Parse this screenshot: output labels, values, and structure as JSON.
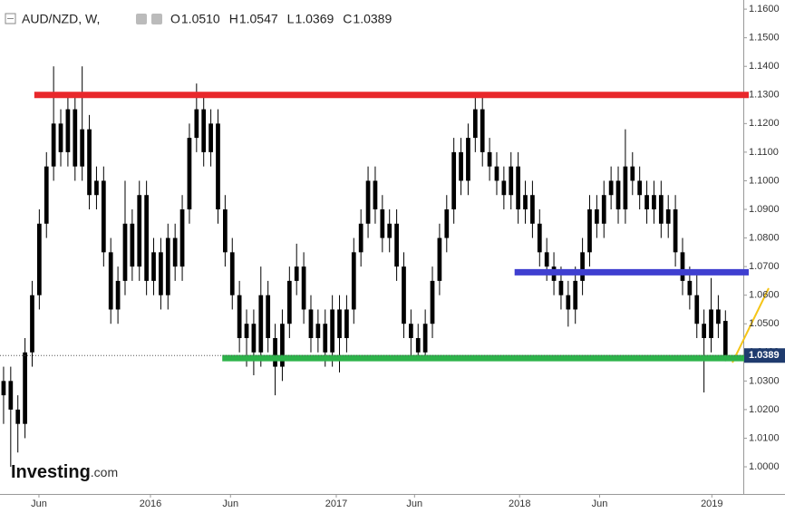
{
  "chart_data": {
    "type": "candlestick",
    "symbol": "AUD/NZD, W,",
    "ohlc_header": [
      {
        "label": "O",
        "value": "1.0510"
      },
      {
        "label": "H",
        "value": "1.0547"
      },
      {
        "label": "L",
        "value": "1.0369"
      },
      {
        "label": "C",
        "value": "1.0389"
      }
    ],
    "last_label": "1.0389",
    "logo": [
      "Investing",
      ".com"
    ],
    "color": "#000000",
    "x": [
      0,
      2,
      4,
      6,
      8,
      10,
      12,
      14,
      16,
      18,
      20,
      22,
      24,
      26,
      28,
      30,
      32,
      34,
      36,
      38,
      40,
      42,
      44,
      46,
      48,
      50,
      52,
      54,
      56,
      58,
      60,
      62,
      64,
      66,
      68,
      70,
      72,
      74,
      76,
      78,
      80,
      82,
      84,
      86,
      88,
      90,
      92,
      94,
      96,
      98,
      100,
      102,
      104,
      106,
      108,
      110,
      112,
      114,
      116,
      118,
      120,
      122,
      124,
      126,
      128,
      130,
      132,
      134,
      136,
      138,
      140,
      142,
      144,
      146,
      148,
      150,
      152,
      154,
      156,
      158,
      160,
      162,
      164,
      166,
      168,
      170,
      172,
      174,
      176,
      178,
      180,
      182,
      184,
      186,
      188,
      190,
      192,
      194,
      196,
      198,
      200,
      202
    ],
    "open": [
      1.025,
      1.03,
      1.02,
      1.015,
      1.04,
      1.06,
      1.085,
      1.105,
      1.12,
      1.11,
      1.125,
      1.105,
      1.118,
      1.095,
      1.1,
      1.075,
      1.055,
      1.065,
      1.085,
      1.07,
      1.095,
      1.065,
      1.075,
      1.06,
      1.08,
      1.07,
      1.09,
      1.115,
      1.125,
      1.11,
      1.12,
      1.09,
      1.075,
      1.06,
      1.045,
      1.05,
      1.04,
      1.06,
      1.045,
      1.035,
      1.05,
      1.065,
      1.07,
      1.055,
      1.045,
      1.05,
      1.04,
      1.055,
      1.045,
      1.055,
      1.075,
      1.085,
      1.1,
      1.09,
      1.08,
      1.085,
      1.07,
      1.05,
      1.045,
      1.04,
      1.05,
      1.065,
      1.08,
      1.09,
      1.11,
      1.1,
      1.115,
      1.125,
      1.11,
      1.105,
      1.1,
      1.095,
      1.105,
      1.09,
      1.095,
      1.085,
      1.075,
      1.07,
      1.065,
      1.06,
      1.055,
      1.065,
      1.075,
      1.09,
      1.085,
      1.095,
      1.1,
      1.09,
      1.105,
      1.1,
      1.095,
      1.09,
      1.095,
      1.085,
      1.09,
      1.075,
      1.065,
      1.06,
      1.05,
      1.045,
      1.055,
      1.051
    ],
    "high": [
      1.035,
      1.035,
      1.025,
      1.045,
      1.065,
      1.09,
      1.11,
      1.14,
      1.125,
      1.13,
      1.13,
      1.14,
      1.123,
      1.105,
      1.105,
      1.08,
      1.07,
      1.1,
      1.09,
      1.1,
      1.1,
      1.08,
      1.08,
      1.085,
      1.085,
      1.095,
      1.12,
      1.134,
      1.13,
      1.125,
      1.125,
      1.095,
      1.08,
      1.065,
      1.055,
      1.055,
      1.07,
      1.065,
      1.05,
      1.055,
      1.07,
      1.078,
      1.075,
      1.06,
      1.055,
      1.055,
      1.06,
      1.06,
      1.06,
      1.08,
      1.09,
      1.105,
      1.105,
      1.095,
      1.09,
      1.09,
      1.075,
      1.055,
      1.05,
      1.055,
      1.07,
      1.085,
      1.095,
      1.115,
      1.115,
      1.12,
      1.13,
      1.13,
      1.115,
      1.11,
      1.105,
      1.11,
      1.11,
      1.1,
      1.1,
      1.09,
      1.08,
      1.075,
      1.07,
      1.065,
      1.07,
      1.08,
      1.095,
      1.095,
      1.1,
      1.105,
      1.105,
      1.118,
      1.11,
      1.105,
      1.1,
      1.1,
      1.1,
      1.095,
      1.095,
      1.08,
      1.07,
      1.067,
      1.055,
      1.066,
      1.06,
      1.0547
    ],
    "low": [
      1.015,
      1.0,
      1.005,
      1.01,
      1.035,
      1.055,
      1.08,
      1.1,
      1.105,
      1.105,
      1.1,
      1.1,
      1.09,
      1.09,
      1.07,
      1.05,
      1.05,
      1.06,
      1.065,
      1.065,
      1.06,
      1.06,
      1.055,
      1.055,
      1.065,
      1.065,
      1.085,
      1.11,
      1.105,
      1.105,
      1.085,
      1.07,
      1.055,
      1.04,
      1.035,
      1.032,
      1.035,
      1.04,
      1.025,
      1.03,
      1.045,
      1.06,
      1.05,
      1.04,
      1.04,
      1.035,
      1.035,
      1.033,
      1.04,
      1.05,
      1.07,
      1.08,
      1.085,
      1.075,
      1.075,
      1.065,
      1.045,
      1.038,
      1.038,
      1.038,
      1.045,
      1.06,
      1.075,
      1.085,
      1.095,
      1.095,
      1.11,
      1.105,
      1.1,
      1.095,
      1.09,
      1.09,
      1.085,
      1.085,
      1.08,
      1.07,
      1.065,
      1.06,
      1.055,
      1.049,
      1.05,
      1.06,
      1.07,
      1.08,
      1.08,
      1.09,
      1.085,
      1.085,
      1.095,
      1.09,
      1.085,
      1.085,
      1.08,
      1.08,
      1.07,
      1.06,
      1.055,
      1.045,
      1.026,
      1.04,
      1.045,
      1.0369
    ],
    "close": [
      1.03,
      1.02,
      1.015,
      1.04,
      1.06,
      1.085,
      1.105,
      1.12,
      1.11,
      1.125,
      1.105,
      1.118,
      1.095,
      1.1,
      1.075,
      1.055,
      1.065,
      1.085,
      1.07,
      1.095,
      1.065,
      1.075,
      1.06,
      1.08,
      1.07,
      1.09,
      1.115,
      1.125,
      1.11,
      1.12,
      1.09,
      1.075,
      1.06,
      1.045,
      1.05,
      1.04,
      1.06,
      1.045,
      1.035,
      1.05,
      1.065,
      1.07,
      1.055,
      1.045,
      1.05,
      1.04,
      1.055,
      1.045,
      1.055,
      1.075,
      1.085,
      1.1,
      1.09,
      1.08,
      1.085,
      1.07,
      1.05,
      1.045,
      1.04,
      1.05,
      1.065,
      1.08,
      1.09,
      1.11,
      1.1,
      1.115,
      1.125,
      1.11,
      1.105,
      1.1,
      1.095,
      1.105,
      1.09,
      1.095,
      1.085,
      1.075,
      1.07,
      1.065,
      1.06,
      1.055,
      1.065,
      1.075,
      1.09,
      1.085,
      1.095,
      1.1,
      1.09,
      1.105,
      1.1,
      1.095,
      1.09,
      1.095,
      1.085,
      1.09,
      1.075,
      1.065,
      1.06,
      1.05,
      1.045,
      1.055,
      1.05,
      1.0389
    ],
    "levels": [
      {
        "value": 1.13,
        "color": "#e8282b",
        "start": 8.6
      },
      {
        "value": 1.068,
        "color": "#3f3fd0",
        "start": 143
      },
      {
        "value": 1.038,
        "color": "#2db34a",
        "start": 61.2
      }
    ],
    "xlim": [
      -1,
      207
    ],
    "xticks": [
      {
        "value": 9.9,
        "label": "Jun"
      },
      {
        "value": 41.1,
        "label": "2016"
      },
      {
        "value": 63.5,
        "label": "Jun"
      },
      {
        "value": 93.1,
        "label": "2017"
      },
      {
        "value": 115,
        "label": "Jun"
      },
      {
        "value": 144.4,
        "label": "2018"
      },
      {
        "value": 166.8,
        "label": "Jun"
      },
      {
        "value": 198.2,
        "label": "2019"
      }
    ],
    "ylim": [
      0.9905,
      1.1632
    ],
    "yticks": [
      {
        "value": 1.0,
        "label": "1.0000"
      },
      {
        "value": 1.01,
        "label": "1.0100"
      },
      {
        "value": 1.02,
        "label": "1.0200"
      },
      {
        "value": 1.03,
        "label": "1.0300"
      },
      {
        "value": 1.04,
        "label": "1.0400"
      },
      {
        "value": 1.05,
        "label": "1.0500"
      },
      {
        "value": 1.06,
        "label": "1.0600"
      },
      {
        "value": 1.07,
        "label": "1.0700"
      },
      {
        "value": 1.08,
        "label": "1.0800"
      },
      {
        "value": 1.09,
        "label": "1.0900"
      },
      {
        "value": 1.1,
        "label": "1.1000"
      },
      {
        "value": 1.11,
        "label": "1.1100"
      },
      {
        "value": 1.12,
        "label": "1.1200"
      },
      {
        "value": 1.13,
        "label": "1.1300"
      },
      {
        "value": 1.14,
        "label": "1.1400"
      },
      {
        "value": 1.15,
        "label": "1.1500"
      },
      {
        "value": 1.16,
        "label": "1.1600"
      }
    ]
  }
}
